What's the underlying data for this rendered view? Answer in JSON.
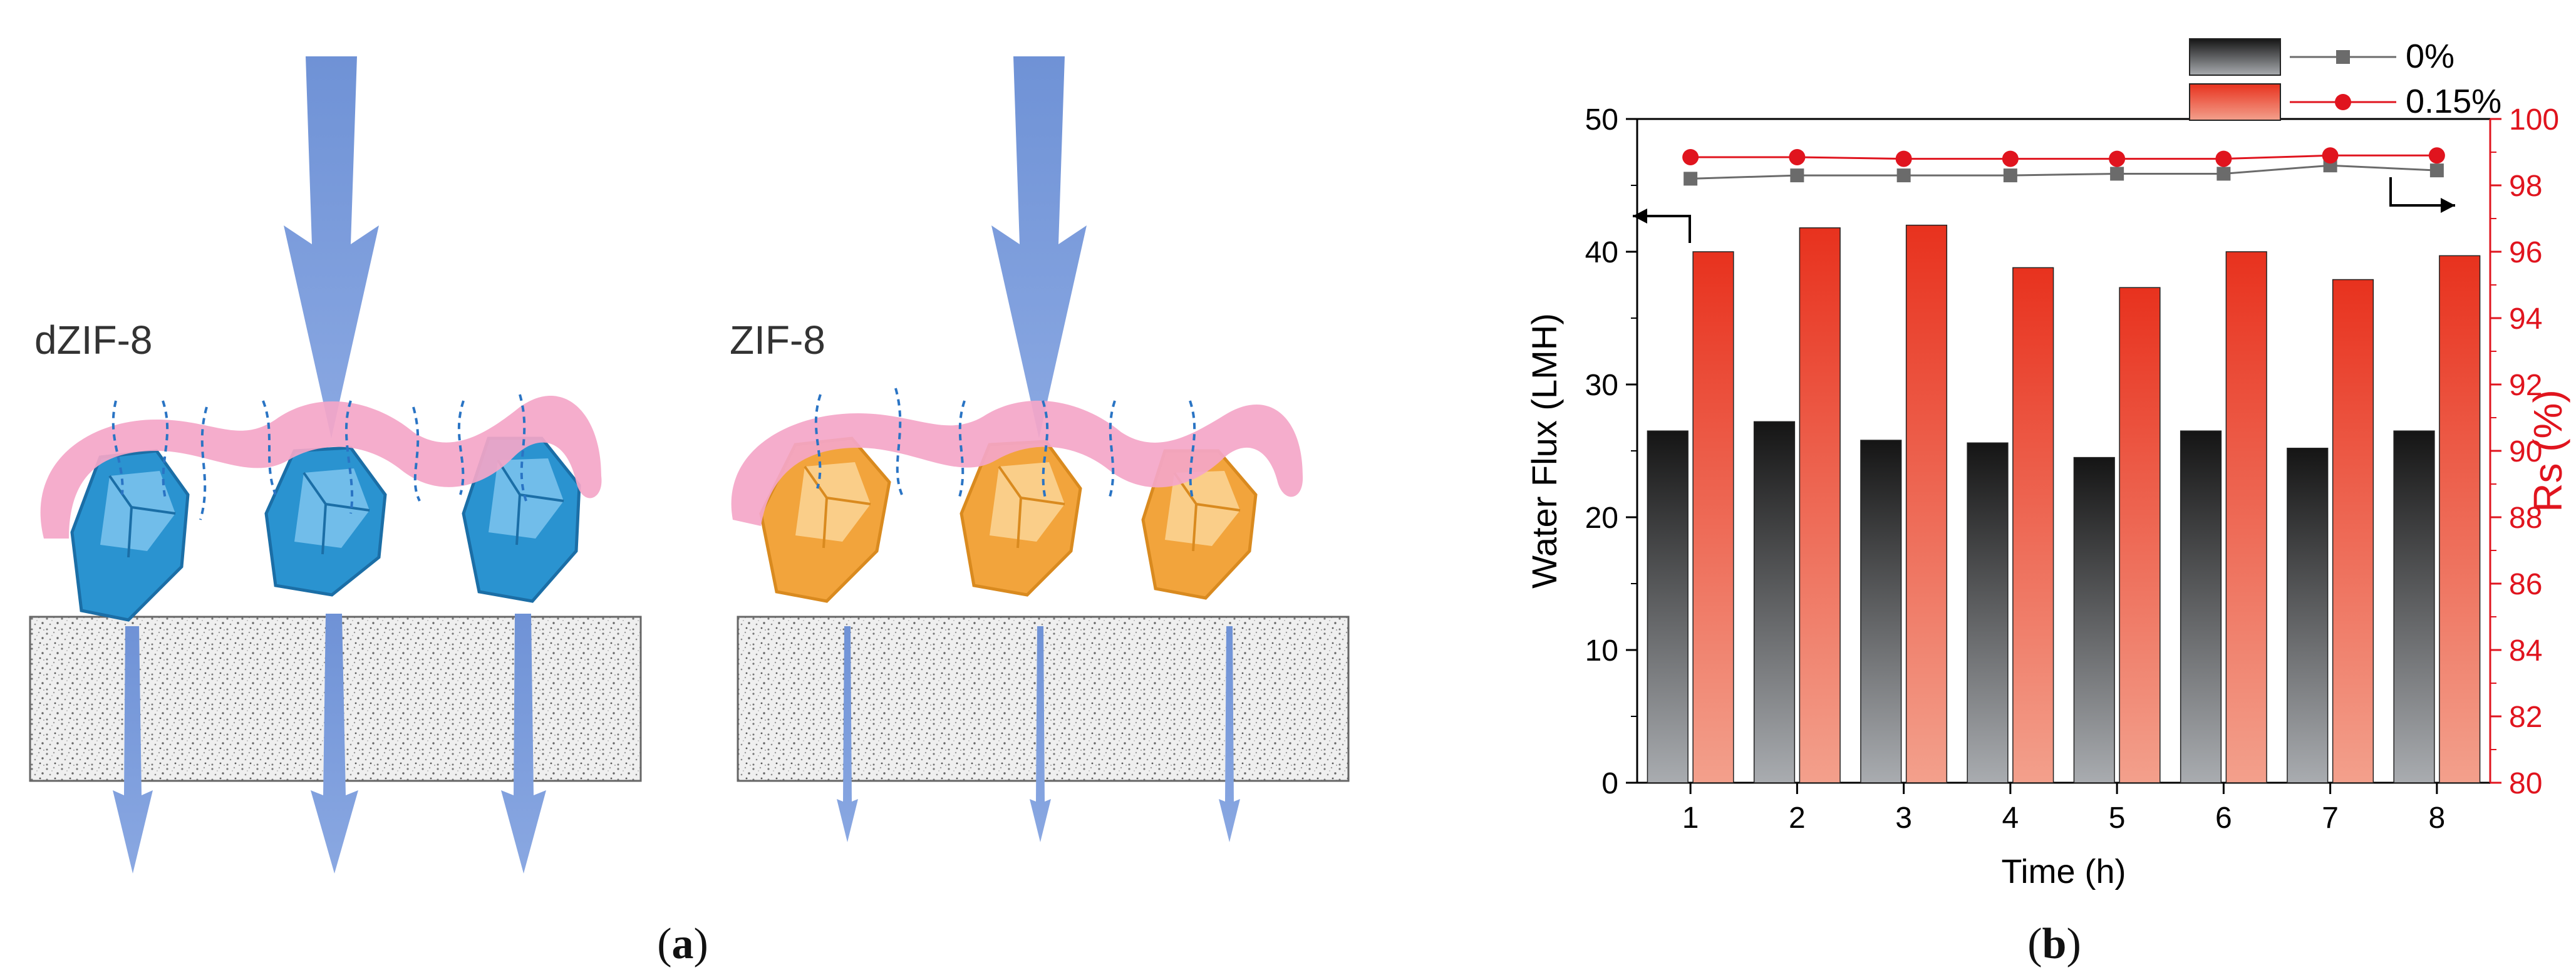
{
  "panel_a": {
    "left_label": "dZIF-8",
    "right_label": "ZIF-8",
    "caption_open": "(",
    "caption_letter": "a",
    "caption_close": ")"
  },
  "panel_b": {
    "caption_open": "(",
    "caption_letter": "b",
    "caption_close": ")"
  },
  "colors": {
    "bar_dark": "#1a1a1a",
    "bar_red": "#e8321e",
    "series_grey": "#6b6b6b",
    "series_red": "#e0141e",
    "axis_red": "#e0141e",
    "film_pink": "#f4a6c8",
    "crystal_blue": "#2a93d0",
    "crystal_orange": "#f2a43c",
    "arrow_blue": "#7d9fdc"
  },
  "chart_data": {
    "type": "bar",
    "categories": [
      "1",
      "2",
      "3",
      "4",
      "5",
      "6",
      "7",
      "8"
    ],
    "xlabel": "Time (h)",
    "ylabel": "Water Flux (LMH)",
    "y2label": "Rs (%)",
    "ylim": [
      0,
      50
    ],
    "y2lim": [
      80,
      100
    ],
    "yticks": [
      "0",
      "10",
      "20",
      "30",
      "40",
      "50"
    ],
    "y2ticks": [
      "80",
      "82",
      "84",
      "86",
      "88",
      "90",
      "92",
      "94",
      "96",
      "98",
      "100"
    ],
    "series": [
      {
        "name": "0%",
        "axis": "left",
        "kind": "bar",
        "values": [
          26.5,
          27.2,
          25.8,
          25.6,
          24.5,
          26.5,
          25.2,
          26.5
        ]
      },
      {
        "name": "0.15%",
        "axis": "left",
        "kind": "bar",
        "values": [
          40.0,
          41.8,
          42.0,
          38.8,
          37.3,
          40.0,
          37.9,
          39.7
        ]
      },
      {
        "name": "0%",
        "axis": "right",
        "kind": "line",
        "values": [
          98.2,
          98.3,
          98.3,
          98.3,
          98.35,
          98.35,
          98.6,
          98.45
        ]
      },
      {
        "name": "0.15%",
        "axis": "right",
        "kind": "line",
        "values": [
          98.85,
          98.85,
          98.8,
          98.8,
          98.8,
          98.8,
          98.9,
          98.9
        ]
      }
    ],
    "legend": {
      "placement": "top-right",
      "entries": [
        "0%",
        "0.15%"
      ]
    },
    "grid": false
  }
}
